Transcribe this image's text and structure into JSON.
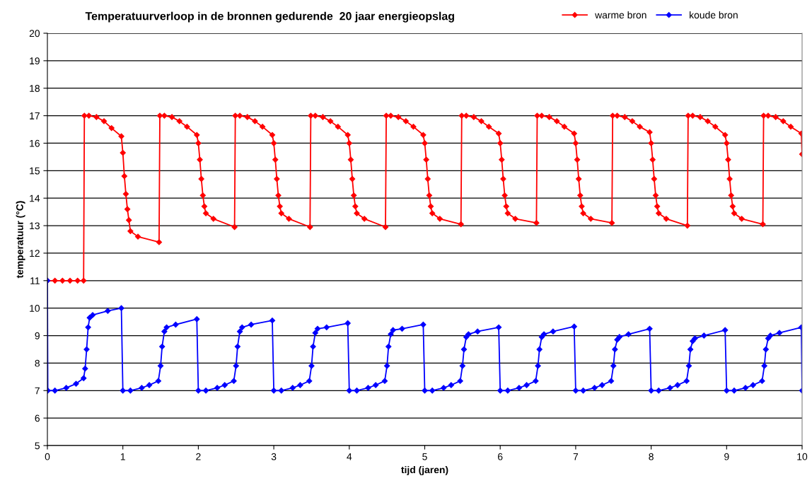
{
  "chart_data": {
    "type": "line",
    "title": "Temperatuurverloop in de bronnen gedurende  20 jaar energieopslag",
    "xlabel": "tijd (jaren)",
    "ylabel": "temperatuur (°C)",
    "xlim": [
      0,
      10
    ],
    "xticks": [
      0,
      1,
      2,
      3,
      4,
      5,
      6,
      7,
      8,
      9,
      10
    ],
    "ylim": [
      5,
      20
    ],
    "yticks": [
      5,
      6,
      7,
      8,
      9,
      10,
      11,
      12,
      13,
      14,
      15,
      16,
      17,
      18,
      19,
      20
    ],
    "grid": "y",
    "legend": "top right",
    "marker": "diamond",
    "line_style": "solid",
    "series": [
      {
        "name": "warme bron",
        "color": "#ff0000",
        "x": [
          0,
          0.1,
          0.2,
          0.3,
          0.4,
          0.48,
          0.49,
          0.55,
          0.65,
          0.75,
          0.85,
          0.98,
          1,
          1.02,
          1.04,
          1.06,
          1.08,
          1.1,
          1.2,
          1.48,
          1.49,
          1.55,
          1.65,
          1.75,
          1.85,
          1.98,
          2,
          2.02,
          2.04,
          2.06,
          2.08,
          2.1,
          2.2,
          2.48,
          2.49,
          2.55,
          2.65,
          2.75,
          2.85,
          2.98,
          3,
          3.02,
          3.04,
          3.06,
          3.08,
          3.1,
          3.2,
          3.48,
          3.49,
          3.55,
          3.65,
          3.75,
          3.85,
          3.98,
          4,
          4.02,
          4.04,
          4.06,
          4.08,
          4.1,
          4.2,
          4.48,
          4.49,
          4.55,
          4.65,
          4.75,
          4.85,
          4.98,
          5,
          5.02,
          5.04,
          5.06,
          5.08,
          5.1,
          5.2,
          5.48,
          5.49,
          5.55,
          5.65,
          5.75,
          5.85,
          5.98,
          6,
          6.02,
          6.04,
          6.06,
          6.08,
          6.1,
          6.2,
          6.48,
          6.49,
          6.55,
          6.65,
          6.75,
          6.85,
          6.98,
          7,
          7.02,
          7.04,
          7.06,
          7.08,
          7.1,
          7.2,
          7.48,
          7.49,
          7.55,
          7.65,
          7.75,
          7.85,
          7.98,
          8,
          8.02,
          8.04,
          8.06,
          8.08,
          8.1,
          8.2,
          8.48,
          8.49,
          8.55,
          8.65,
          8.75,
          8.85,
          8.98,
          9,
          9.02,
          9.04,
          9.06,
          9.08,
          9.1,
          9.2,
          9.48,
          9.49,
          9.55,
          9.65,
          9.75,
          9.85,
          9.99,
          10
        ],
        "values": [
          11,
          11,
          11,
          11,
          11,
          11,
          17,
          17,
          16.95,
          16.8,
          16.55,
          16.25,
          15.65,
          14.8,
          14.15,
          13.6,
          13.2,
          12.8,
          12.6,
          12.4,
          17,
          17,
          16.95,
          16.8,
          16.6,
          16.3,
          16.0,
          15.4,
          14.7,
          14.1,
          13.7,
          13.45,
          13.25,
          12.95,
          17,
          17,
          16.95,
          16.8,
          16.6,
          16.3,
          16.0,
          15.4,
          14.7,
          14.1,
          13.7,
          13.45,
          13.25,
          12.95,
          17,
          17,
          16.95,
          16.8,
          16.6,
          16.3,
          16.0,
          15.4,
          14.7,
          14.1,
          13.7,
          13.45,
          13.25,
          12.95,
          17,
          17,
          16.95,
          16.8,
          16.6,
          16.3,
          16.0,
          15.4,
          14.7,
          14.1,
          13.7,
          13.45,
          13.25,
          13.05,
          17,
          17,
          16.95,
          16.8,
          16.6,
          16.35,
          16.0,
          15.4,
          14.7,
          14.1,
          13.7,
          13.45,
          13.25,
          13.1,
          17,
          17,
          16.95,
          16.8,
          16.6,
          16.35,
          16.0,
          15.4,
          14.7,
          14.1,
          13.7,
          13.45,
          13.25,
          13.1,
          17,
          17,
          16.95,
          16.8,
          16.6,
          16.4,
          16.0,
          15.4,
          14.7,
          14.1,
          13.7,
          13.45,
          13.25,
          13.0,
          17,
          17,
          16.95,
          16.8,
          16.6,
          16.3,
          16.0,
          15.4,
          14.7,
          14.1,
          13.7,
          13.45,
          13.25,
          13.05,
          17,
          17,
          16.95,
          16.8,
          16.6,
          16.35,
          15.6
        ]
      },
      {
        "name": "koude bron",
        "color": "#0000ff",
        "x": [
          0,
          0.005,
          0.1,
          0.25,
          0.38,
          0.48,
          0.5,
          0.52,
          0.54,
          0.56,
          0.6,
          0.8,
          0.98,
          1,
          1.1,
          1.25,
          1.35,
          1.47,
          1.5,
          1.52,
          1.55,
          1.58,
          1.7,
          1.98,
          2,
          2.1,
          2.25,
          2.35,
          2.47,
          2.5,
          2.52,
          2.55,
          2.58,
          2.7,
          2.98,
          3,
          3.1,
          3.25,
          3.35,
          3.47,
          3.5,
          3.52,
          3.55,
          3.58,
          3.7,
          3.98,
          4,
          4.1,
          4.25,
          4.35,
          4.47,
          4.5,
          4.52,
          4.55,
          4.58,
          4.7,
          4.98,
          5,
          5.1,
          5.25,
          5.35,
          5.47,
          5.5,
          5.52,
          5.55,
          5.58,
          5.7,
          5.98,
          6,
          6.1,
          6.25,
          6.35,
          6.47,
          6.5,
          6.52,
          6.55,
          6.58,
          6.7,
          6.98,
          7,
          7.1,
          7.25,
          7.35,
          7.47,
          7.5,
          7.52,
          7.55,
          7.58,
          7.7,
          7.98,
          8,
          8.1,
          8.25,
          8.35,
          8.47,
          8.5,
          8.52,
          8.55,
          8.58,
          8.7,
          8.98,
          9,
          9.1,
          9.25,
          9.35,
          9.47,
          9.5,
          9.52,
          9.55,
          9.58,
          9.7,
          9.99,
          10
        ],
        "values": [
          11,
          7,
          7,
          7.1,
          7.25,
          7.45,
          7.8,
          8.5,
          9.3,
          9.65,
          9.75,
          9.9,
          10.0,
          7,
          7,
          7.1,
          7.2,
          7.35,
          7.9,
          8.6,
          9.15,
          9.3,
          9.4,
          9.6,
          7,
          7,
          7.1,
          7.2,
          7.35,
          7.9,
          8.6,
          9.15,
          9.3,
          9.4,
          9.55,
          7,
          7,
          7.1,
          7.2,
          7.35,
          7.9,
          8.6,
          9.1,
          9.25,
          9.3,
          9.45,
          7,
          7,
          7.1,
          7.2,
          7.35,
          7.9,
          8.6,
          9.05,
          9.2,
          9.25,
          9.4,
          7,
          7,
          7.1,
          7.2,
          7.35,
          7.9,
          8.5,
          8.95,
          9.05,
          9.15,
          9.3,
          7,
          7,
          7.1,
          7.2,
          7.35,
          7.9,
          8.5,
          8.95,
          9.05,
          9.15,
          9.33,
          7,
          7,
          7.1,
          7.2,
          7.35,
          7.9,
          8.5,
          8.85,
          8.95,
          9.05,
          9.25,
          7,
          7,
          7.1,
          7.2,
          7.35,
          7.9,
          8.5,
          8.8,
          8.9,
          9.0,
          9.2,
          7,
          7,
          7.1,
          7.2,
          7.35,
          7.9,
          8.5,
          8.9,
          9.0,
          9.1,
          9.3,
          7
        ]
      }
    ]
  }
}
